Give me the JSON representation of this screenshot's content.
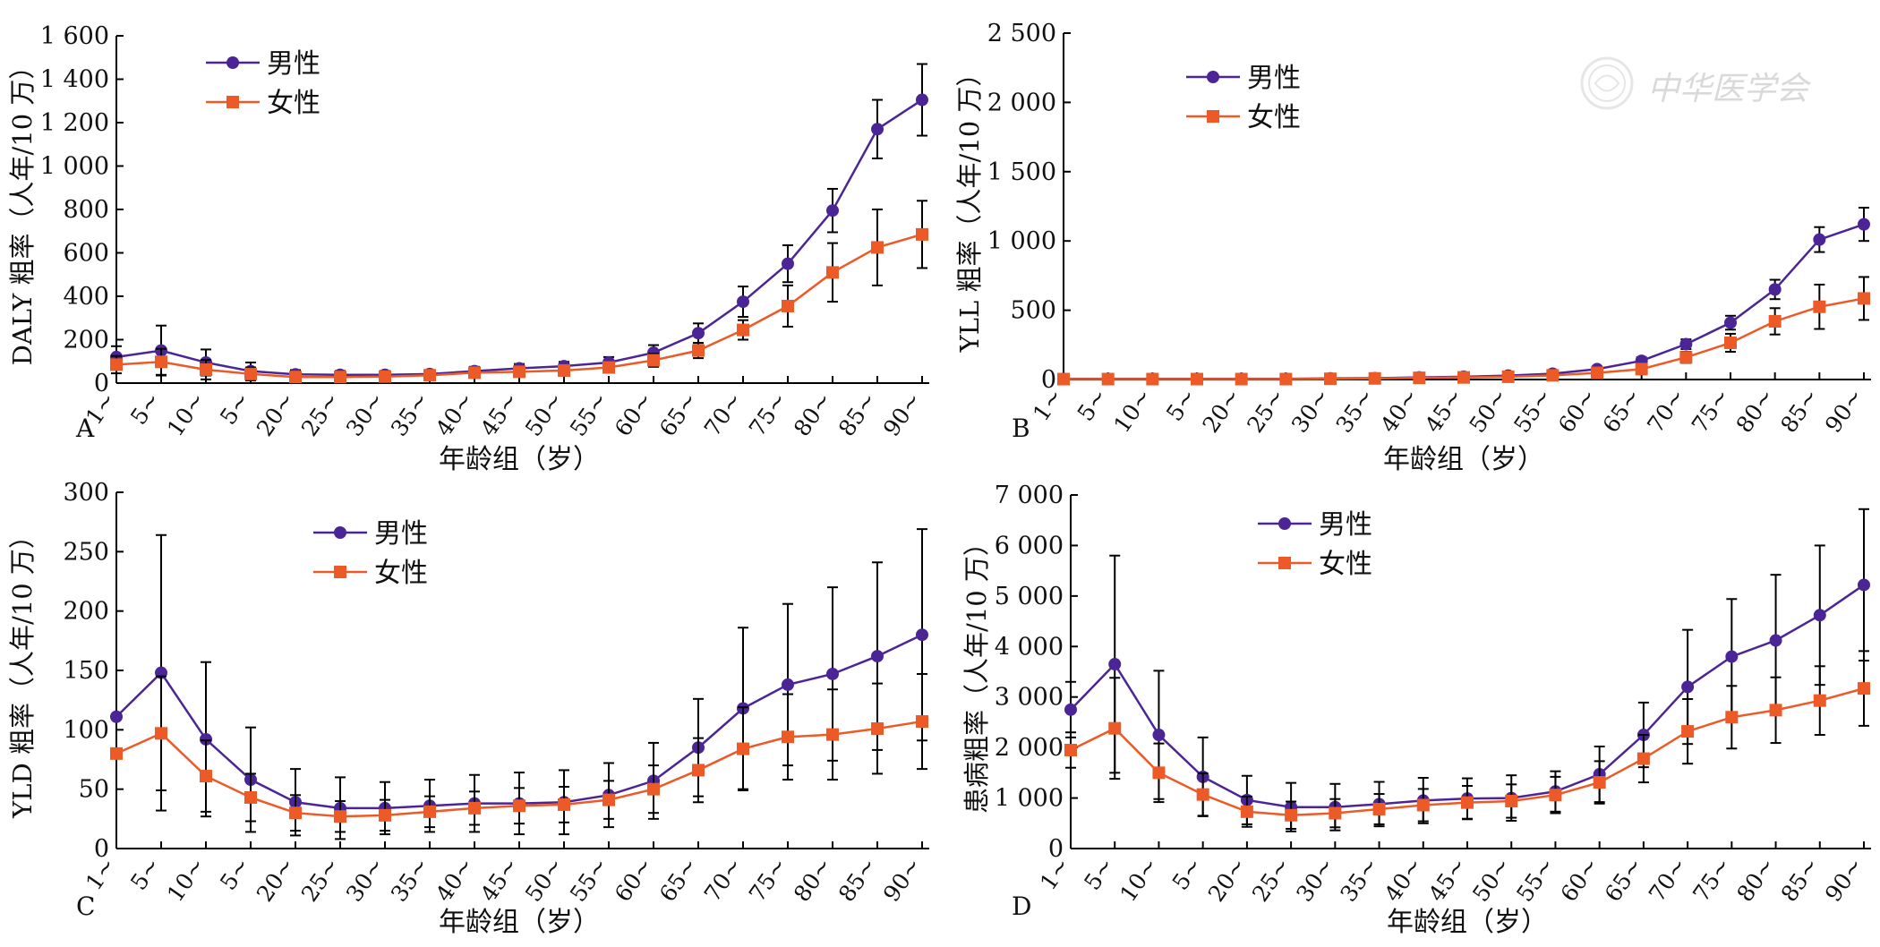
{
  "watermark": {
    "text": "中华医学会"
  },
  "chart_data": [
    {
      "panel": "A",
      "type": "line",
      "ylabel": "DALY 粗率（人年/10 万）",
      "xlabel": "年龄组（岁）",
      "ylim": [
        0,
        1600
      ],
      "yticks": [
        0,
        200,
        400,
        600,
        800,
        1000,
        1200,
        1400,
        1600
      ],
      "ytick_labels": [
        "0",
        "200",
        "400",
        "600",
        "800",
        "1 000",
        "1 200",
        "1 400",
        "1 600"
      ],
      "categories": [
        "1~",
        "5~",
        "10~",
        "5~",
        "20~",
        "25~",
        "30~",
        "35~",
        "40~",
        "45~",
        "50~",
        "55~",
        "60~",
        "65~",
        "70~",
        "75~",
        "80~",
        "85~",
        "90~"
      ],
      "legend_position": "top-left",
      "grid": false,
      "series": [
        {
          "name": "男性",
          "color": "#4b2596",
          "marker": "circle",
          "values": [
            120,
            150,
            95,
            55,
            40,
            38,
            38,
            42,
            55,
            68,
            78,
            95,
            140,
            230,
            375,
            550,
            795,
            1170,
            1305
          ],
          "error": [
            50,
            115,
            60,
            40,
            20,
            18,
            18,
            18,
            20,
            20,
            20,
            25,
            35,
            45,
            70,
            85,
            100,
            135,
            165
          ]
        },
        {
          "name": "女性",
          "color": "#ec5a27",
          "marker": "square",
          "values": [
            85,
            98,
            62,
            42,
            28,
            28,
            30,
            36,
            48,
            52,
            58,
            72,
            105,
            150,
            245,
            355,
            510,
            625,
            685
          ],
          "error": [
            40,
            60,
            45,
            30,
            15,
            15,
            15,
            15,
            15,
            15,
            18,
            22,
            30,
            35,
            45,
            95,
            135,
            175,
            155
          ]
        }
      ]
    },
    {
      "panel": "B",
      "type": "line",
      "ylabel": "YLL 粗率（人年/10 万）",
      "xlabel": "年龄组（岁）",
      "ylim": [
        0,
        2500
      ],
      "yticks": [
        0,
        500,
        1000,
        1500,
        2000,
        2500
      ],
      "ytick_labels": [
        "0",
        "500",
        "1 000",
        "1 500",
        "2 000",
        "2 500"
      ],
      "categories": [
        "1~",
        "5~",
        "10~",
        "5~",
        "20~",
        "25~",
        "30~",
        "35~",
        "40~",
        "45~",
        "50~",
        "55~",
        "60~",
        "65~",
        "70~",
        "75~",
        "80~",
        "85~",
        "90~"
      ],
      "legend_position": "top-left",
      "grid": false,
      "series": [
        {
          "name": "男性",
          "color": "#4b2596",
          "marker": "circle",
          "values": [
            5,
            5,
            5,
            5,
            5,
            5,
            8,
            10,
            15,
            20,
            28,
            42,
            75,
            135,
            255,
            410,
            650,
            1010,
            1120
          ],
          "error": [
            3,
            3,
            3,
            3,
            3,
            3,
            4,
            5,
            6,
            8,
            10,
            12,
            18,
            25,
            35,
            50,
            70,
            90,
            120
          ]
        },
        {
          "name": "女性",
          "color": "#ec5a27",
          "marker": "square",
          "values": [
            3,
            3,
            3,
            3,
            3,
            3,
            5,
            8,
            12,
            15,
            20,
            30,
            48,
            75,
            160,
            265,
            420,
            525,
            585
          ],
          "error": [
            2,
            2,
            2,
            2,
            2,
            2,
            3,
            4,
            5,
            6,
            8,
            10,
            14,
            20,
            40,
            65,
            95,
            160,
            155
          ]
        }
      ]
    },
    {
      "panel": "C",
      "type": "line",
      "ylabel": "YLD 粗率（人年/10 万）",
      "xlabel": "年龄组（岁）",
      "ylim": [
        0,
        300
      ],
      "yticks": [
        0,
        50,
        100,
        150,
        200,
        250,
        300
      ],
      "ytick_labels": [
        "0",
        "50",
        "100",
        "150",
        "200",
        "250",
        "300"
      ],
      "categories": [
        "1~",
        "5~",
        "10~",
        "5~",
        "20~",
        "25~",
        "30~",
        "35~",
        "40~",
        "45~",
        "50~",
        "55~",
        "60~",
        "65~",
        "70~",
        "75~",
        "80~",
        "85~",
        "90~"
      ],
      "legend_position": "top-center",
      "grid": false,
      "series": [
        {
          "name": "男性",
          "color": "#4b2596",
          "marker": "circle",
          "values": [
            111,
            148,
            92,
            58,
            39,
            34,
            34,
            36,
            38,
            38,
            39,
            45,
            57,
            85,
            118,
            138,
            147,
            162,
            180
          ],
          "error": [
            0,
            116,
            65,
            44,
            28,
            26,
            22,
            22,
            24,
            26,
            27,
            27,
            32,
            41,
            68,
            68,
            73,
            79,
            89
          ]
        },
        {
          "name": "女性",
          "color": "#ec5a27",
          "marker": "square",
          "values": [
            80,
            97,
            61,
            43,
            30,
            27,
            28,
            31,
            34,
            36,
            37,
            41,
            50,
            66,
            84,
            94,
            96,
            101,
            107
          ],
          "error": [
            0,
            48,
            30,
            20,
            15,
            13,
            13,
            13,
            14,
            15,
            15,
            16,
            20,
            27,
            35,
            36,
            38,
            38,
            40
          ]
        }
      ]
    },
    {
      "panel": "D",
      "type": "line",
      "ylabel": "患病粗率（人年/10 万）",
      "xlabel": "年龄组（岁）",
      "ylim": [
        0,
        7000
      ],
      "yticks": [
        0,
        1000,
        2000,
        3000,
        4000,
        5000,
        6000,
        7000
      ],
      "ytick_labels": [
        "0",
        "1 000",
        "2 000",
        "3 000",
        "4 000",
        "5 000",
        "6 000",
        "7 000"
      ],
      "categories": [
        "1~",
        "5~",
        "10~",
        "5~",
        "20~",
        "25~",
        "30~",
        "35~",
        "40~",
        "45~",
        "50~",
        "55~",
        "60~",
        "65~",
        "70~",
        "75~",
        "80~",
        "85~",
        "90~"
      ],
      "legend_position": "top-center",
      "grid": false,
      "series": [
        {
          "name": "男性",
          "color": "#4b2596",
          "marker": "circle",
          "values": [
            2750,
            3650,
            2250,
            1420,
            960,
            820,
            820,
            880,
            950,
            990,
            1000,
            1130,
            1470,
            2250,
            3200,
            3800,
            4120,
            4620,
            5220
          ],
          "error": [
            550,
            2150,
            1270,
            780,
            480,
            480,
            460,
            440,
            450,
            400,
            450,
            400,
            550,
            640,
            1130,
            1140,
            1300,
            1380,
            1500
          ]
        },
        {
          "name": "女性",
          "color": "#ec5a27",
          "marker": "square",
          "values": [
            1950,
            2380,
            1500,
            1070,
            730,
            660,
            700,
            780,
            860,
            910,
            940,
            1060,
            1310,
            1780,
            2320,
            2600,
            2740,
            2930,
            3170
          ],
          "error": [
            350,
            1000,
            580,
            420,
            300,
            270,
            280,
            300,
            320,
            330,
            330,
            360,
            420,
            470,
            640,
            620,
            650,
            680,
            740
          ]
        }
      ]
    }
  ]
}
